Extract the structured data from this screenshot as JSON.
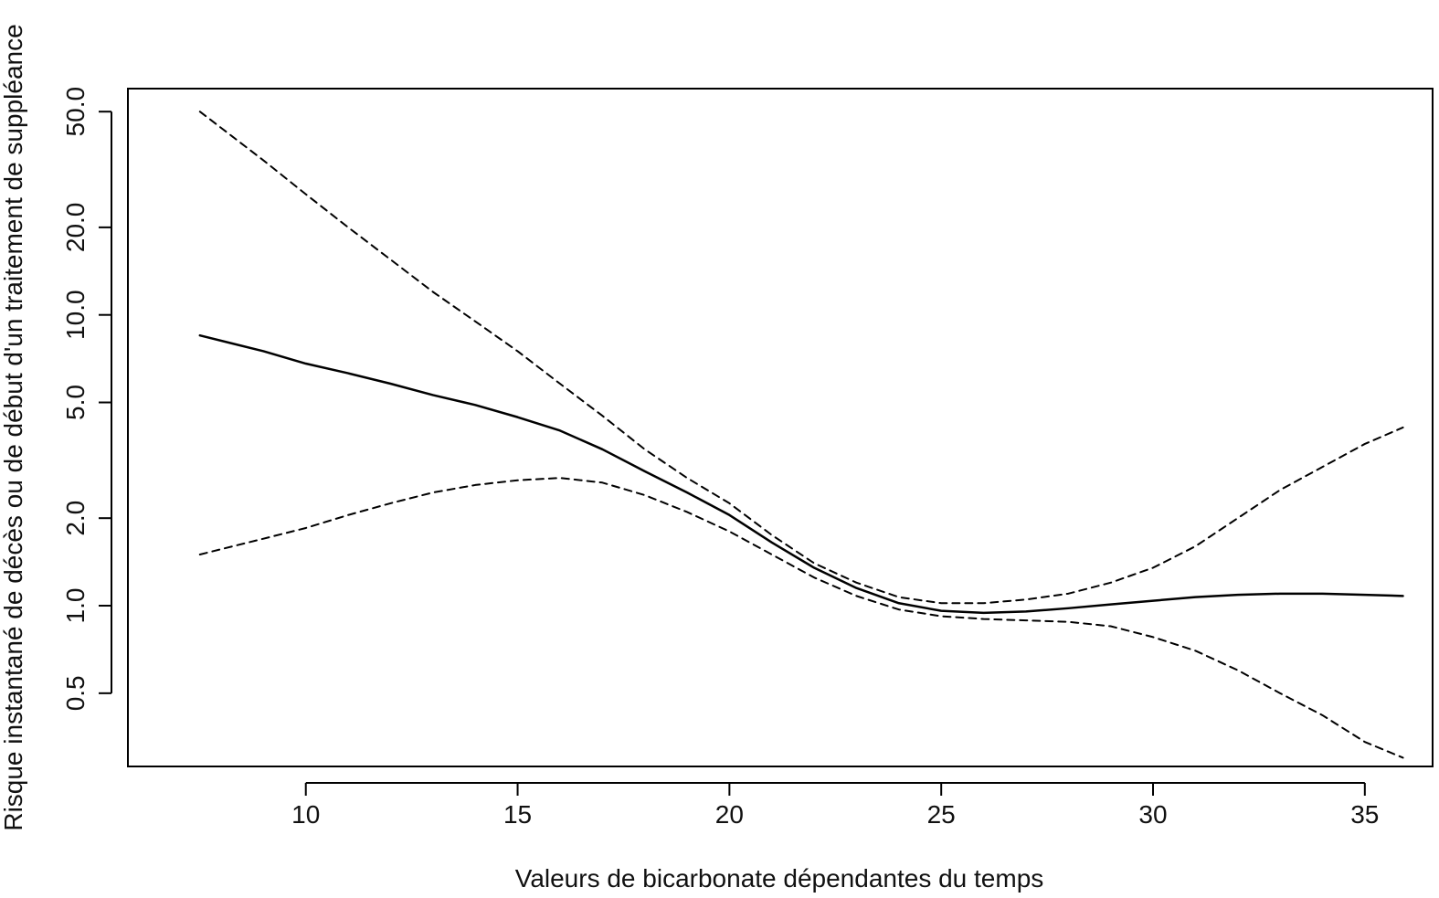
{
  "chart_data": {
    "type": "line",
    "title": "",
    "xlabel": "Valeurs de bicarbonate dépendantes du temps",
    "ylabel": "Risque instantané de décès ou de début d'un traitement de suppléance",
    "xlim": [
      5.8,
      36.6
    ],
    "ylim_log": [
      0.28,
      60
    ],
    "y_scale": "log",
    "grid": false,
    "legend": "none",
    "x_ticks": [
      10,
      15,
      20,
      25,
      30,
      35
    ],
    "x_tick_labels": [
      "10",
      "15",
      "20",
      "25",
      "30",
      "35"
    ],
    "y_ticks": [
      0.5,
      1.0,
      2.0,
      5.0,
      10.0,
      20.0,
      50.0
    ],
    "y_tick_labels": [
      "0.5",
      "1.0",
      "2.0",
      "5.0",
      "10.0",
      "20.0",
      "50.0"
    ],
    "x": [
      7.5,
      9,
      10,
      11,
      12,
      13,
      14,
      15,
      16,
      17,
      18,
      19,
      20,
      21,
      22,
      23,
      24,
      25,
      26,
      27,
      28,
      29,
      30,
      31,
      32,
      33,
      34,
      35,
      35.9
    ],
    "series": [
      {
        "style": "solid",
        "values": [
          8.5,
          7.5,
          6.8,
          6.3,
          5.8,
          5.3,
          4.9,
          4.45,
          4.0,
          3.45,
          2.9,
          2.45,
          2.05,
          1.65,
          1.35,
          1.15,
          1.02,
          0.96,
          0.945,
          0.955,
          0.98,
          1.01,
          1.04,
          1.07,
          1.09,
          1.1,
          1.1,
          1.09,
          1.08
        ]
      },
      {
        "style": "dashed",
        "values": [
          50,
          34,
          26,
          20,
          15.5,
          12,
          9.5,
          7.5,
          5.8,
          4.5,
          3.45,
          2.75,
          2.25,
          1.75,
          1.4,
          1.2,
          1.07,
          1.02,
          1.02,
          1.05,
          1.1,
          1.2,
          1.35,
          1.6,
          2.0,
          2.5,
          3.0,
          3.6,
          4.1
        ]
      },
      {
        "style": "dashed",
        "values": [
          1.5,
          1.7,
          1.85,
          2.05,
          2.25,
          2.45,
          2.6,
          2.7,
          2.75,
          2.65,
          2.4,
          2.1,
          1.8,
          1.5,
          1.25,
          1.08,
          0.97,
          0.92,
          0.9,
          0.89,
          0.88,
          0.85,
          0.78,
          0.7,
          0.6,
          0.5,
          0.42,
          0.34,
          0.3
        ]
      }
    ]
  }
}
